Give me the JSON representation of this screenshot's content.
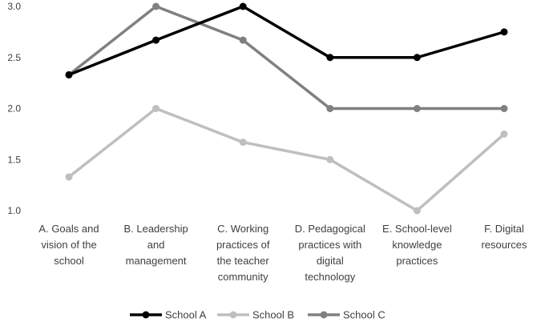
{
  "chart_data": {
    "type": "line",
    "categories": [
      "A. Goals and vision of the school",
      "B. Leadership and management",
      "C. Working practices of the teacher community",
      "D. Pedagogical practices with digital technology",
      "E. School-level knowledge practices",
      "F. Digital resources"
    ],
    "category_lines": [
      [
        "A. Goals and",
        "vision of the",
        "school"
      ],
      [
        "B. Leadership",
        "and",
        "management"
      ],
      [
        "C. Working",
        "practices of",
        "the teacher",
        "community"
      ],
      [
        "D. Pedagogical",
        "practices with",
        "digital",
        "technology"
      ],
      [
        "E. School-level",
        "knowledge",
        "practices"
      ],
      [
        "F. Digital",
        "resources"
      ]
    ],
    "series": [
      {
        "name": "School A",
        "color": "#000000",
        "values": [
          2.33,
          2.67,
          3.0,
          2.5,
          2.5,
          2.75
        ]
      },
      {
        "name": "School B",
        "color": "#bfbfbf",
        "values": [
          1.33,
          2.0,
          1.67,
          1.5,
          1.0,
          1.75
        ]
      },
      {
        "name": "School C",
        "color": "#808080",
        "values": [
          2.33,
          3.0,
          2.67,
          2.0,
          2.0,
          2.0
        ]
      }
    ],
    "yticks": [
      "1.0",
      "1.5",
      "2.0",
      "2.5",
      "3.0"
    ],
    "ylim": [
      1.0,
      3.0
    ],
    "grid": false,
    "legend": "bottom",
    "title": "",
    "xlabel": "",
    "ylabel": ""
  }
}
